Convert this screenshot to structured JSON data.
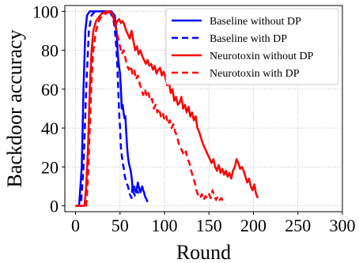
{
  "chart_data": {
    "type": "line",
    "title": "",
    "xlabel": "Round",
    "ylabel": "Backdoor accuracy",
    "xlim": [
      -12,
      300
    ],
    "ylim": [
      -3,
      103
    ],
    "xticks": [
      0,
      50,
      100,
      150,
      200,
      250,
      300
    ],
    "yticks": [
      0,
      20,
      40,
      60,
      80,
      100
    ],
    "grid": true,
    "grid_style": "dotted",
    "legend_position": "top-right",
    "series": [
      {
        "name": "Baseline without DP",
        "color": "#0000ff",
        "line_style": "solid",
        "points": [
          [
            0,
            0
          ],
          [
            4,
            0
          ],
          [
            7,
            20
          ],
          [
            9,
            60
          ],
          [
            11,
            90
          ],
          [
            13,
            98
          ],
          [
            16,
            100
          ],
          [
            20,
            100
          ],
          [
            30,
            100
          ],
          [
            40,
            100
          ],
          [
            44,
            98
          ],
          [
            46,
            90
          ],
          [
            48,
            75
          ],
          [
            50,
            68
          ],
          [
            51,
            60
          ],
          [
            52,
            50
          ],
          [
            53,
            52
          ],
          [
            54,
            48
          ],
          [
            55,
            45
          ],
          [
            56,
            46
          ],
          [
            57,
            38
          ],
          [
            58,
            30
          ],
          [
            59,
            25
          ],
          [
            60,
            22
          ],
          [
            61,
            20
          ],
          [
            62,
            18
          ],
          [
            63,
            15
          ],
          [
            64,
            10
          ],
          [
            65,
            8
          ],
          [
            66,
            10
          ],
          [
            67,
            8
          ],
          [
            68,
            7
          ],
          [
            69,
            9
          ],
          [
            70,
            12
          ],
          [
            71,
            10
          ],
          [
            72,
            8
          ],
          [
            73,
            7
          ],
          [
            74,
            9
          ],
          [
            75,
            10
          ],
          [
            76,
            8
          ],
          [
            77,
            7
          ],
          [
            78,
            5
          ],
          [
            79,
            4
          ],
          [
            80,
            3
          ],
          [
            81,
            2
          ]
        ]
      },
      {
        "name": "Baseline with DP",
        "color": "#0000ff",
        "line_style": "dashed",
        "points": [
          [
            0,
            0
          ],
          [
            6,
            0
          ],
          [
            9,
            20
          ],
          [
            12,
            60
          ],
          [
            15,
            90
          ],
          [
            18,
            98
          ],
          [
            22,
            100
          ],
          [
            30,
            100
          ],
          [
            38,
            100
          ],
          [
            42,
            97
          ],
          [
            44,
            92
          ],
          [
            46,
            80
          ],
          [
            47,
            72
          ],
          [
            48,
            60
          ],
          [
            49,
            48
          ],
          [
            50,
            40
          ],
          [
            51,
            30
          ],
          [
            52,
            26
          ],
          [
            53,
            22
          ],
          [
            54,
            20
          ],
          [
            55,
            16
          ],
          [
            56,
            14
          ],
          [
            57,
            13
          ],
          [
            58,
            11
          ],
          [
            59,
            10
          ],
          [
            60,
            8
          ],
          [
            61,
            6
          ],
          [
            62,
            5
          ],
          [
            63,
            4
          ],
          [
            64,
            10
          ],
          [
            65,
            7
          ],
          [
            66,
            6
          ],
          [
            67,
            5
          ],
          [
            68,
            5
          ],
          [
            69,
            8
          ],
          [
            70,
            7
          ],
          [
            71,
            6
          ],
          [
            72,
            7
          ]
        ]
      },
      {
        "name": "Neurotoxin without DP",
        "color": "#ff0000",
        "line_style": "solid",
        "points": [
          [
            0,
            0
          ],
          [
            10,
            0
          ],
          [
            12,
            10
          ],
          [
            14,
            30
          ],
          [
            16,
            60
          ],
          [
            18,
            80
          ],
          [
            20,
            90
          ],
          [
            23,
            95
          ],
          [
            26,
            97
          ],
          [
            30,
            99
          ],
          [
            35,
            100
          ],
          [
            38,
            100
          ],
          [
            41,
            99
          ],
          [
            43,
            96
          ],
          [
            45,
            93
          ],
          [
            47,
            95
          ],
          [
            49,
            96
          ],
          [
            51,
            94
          ],
          [
            53,
            95
          ],
          [
            55,
            93
          ],
          [
            57,
            90
          ],
          [
            59,
            88
          ],
          [
            61,
            86
          ],
          [
            63,
            90
          ],
          [
            65,
            85
          ],
          [
            67,
            80
          ],
          [
            69,
            82
          ],
          [
            71,
            78
          ],
          [
            73,
            80
          ],
          [
            75,
            77
          ],
          [
            77,
            75
          ],
          [
            79,
            73
          ],
          [
            81,
            75
          ],
          [
            83,
            72
          ],
          [
            85,
            73
          ],
          [
            87,
            70
          ],
          [
            89,
            72
          ],
          [
            91,
            68
          ],
          [
            93,
            70
          ],
          [
            95,
            71
          ],
          [
            97,
            67
          ],
          [
            99,
            69
          ],
          [
            101,
            66
          ],
          [
            103,
            62
          ],
          [
            105,
            64
          ],
          [
            107,
            58
          ],
          [
            109,
            60
          ],
          [
            111,
            54
          ],
          [
            113,
            56
          ],
          [
            115,
            52
          ],
          [
            117,
            53
          ],
          [
            119,
            56
          ],
          [
            121,
            50
          ],
          [
            123,
            52
          ],
          [
            125,
            48
          ],
          [
            127,
            51
          ],
          [
            129,
            46
          ],
          [
            131,
            48
          ],
          [
            133,
            44
          ],
          [
            135,
            46
          ],
          [
            137,
            40
          ],
          [
            139,
            38
          ],
          [
            141,
            35
          ],
          [
            143,
            32
          ],
          [
            145,
            30
          ],
          [
            147,
            28
          ],
          [
            149,
            26
          ],
          [
            151,
            24
          ],
          [
            153,
            22
          ],
          [
            155,
            24
          ],
          [
            157,
            20
          ],
          [
            159,
            18
          ],
          [
            161,
            21
          ],
          [
            163,
            17
          ],
          [
            165,
            19
          ],
          [
            167,
            16
          ],
          [
            169,
            18
          ],
          [
            171,
            15
          ],
          [
            173,
            17
          ],
          [
            175,
            14
          ],
          [
            177,
            18
          ],
          [
            179,
            20
          ],
          [
            181,
            24
          ],
          [
            183,
            22
          ],
          [
            185,
            19
          ],
          [
            187,
            20
          ],
          [
            189,
            18
          ],
          [
            191,
            15
          ],
          [
            193,
            12
          ],
          [
            195,
            14
          ],
          [
            197,
            10
          ],
          [
            199,
            8
          ],
          [
            201,
            11
          ],
          [
            203,
            6
          ],
          [
            205,
            4
          ]
        ]
      },
      {
        "name": "Neurotoxin with DP",
        "color": "#ff0000",
        "line_style": "dashed",
        "points": [
          [
            0,
            0
          ],
          [
            12,
            0
          ],
          [
            14,
            15
          ],
          [
            16,
            40
          ],
          [
            18,
            65
          ],
          [
            20,
            80
          ],
          [
            23,
            90
          ],
          [
            26,
            95
          ],
          [
            30,
            98
          ],
          [
            35,
            99
          ],
          [
            39,
            100
          ],
          [
            42,
            98
          ],
          [
            44,
            94
          ],
          [
            46,
            90
          ],
          [
            48,
            86
          ],
          [
            50,
            82
          ],
          [
            52,
            78
          ],
          [
            54,
            80
          ],
          [
            56,
            76
          ],
          [
            58,
            72
          ],
          [
            60,
            70
          ],
          [
            62,
            72
          ],
          [
            64,
            68
          ],
          [
            66,
            70
          ],
          [
            68,
            65
          ],
          [
            70,
            67
          ],
          [
            72,
            63
          ],
          [
            74,
            60
          ],
          [
            76,
            57
          ],
          [
            78,
            60
          ],
          [
            80,
            56
          ],
          [
            82,
            58
          ],
          [
            84,
            54
          ],
          [
            86,
            55
          ],
          [
            88,
            50
          ],
          [
            90,
            52
          ],
          [
            92,
            48
          ],
          [
            94,
            50
          ],
          [
            96,
            46
          ],
          [
            98,
            48
          ],
          [
            100,
            44
          ],
          [
            102,
            46
          ],
          [
            104,
            42
          ],
          [
            106,
            44
          ],
          [
            108,
            40
          ],
          [
            110,
            42
          ],
          [
            112,
            38
          ],
          [
            114,
            36
          ],
          [
            116,
            32
          ],
          [
            118,
            30
          ],
          [
            120,
            28
          ],
          [
            122,
            26
          ],
          [
            124,
            28
          ],
          [
            126,
            24
          ],
          [
            128,
            22
          ],
          [
            130,
            18
          ],
          [
            132,
            15
          ],
          [
            134,
            12
          ],
          [
            136,
            8
          ],
          [
            138,
            5
          ],
          [
            140,
            4
          ],
          [
            142,
            6
          ],
          [
            144,
            3
          ],
          [
            146,
            5
          ],
          [
            148,
            4
          ],
          [
            150,
            6
          ],
          [
            152,
            4
          ],
          [
            154,
            8
          ],
          [
            156,
            5
          ],
          [
            158,
            3
          ],
          [
            160,
            5
          ],
          [
            162,
            3
          ],
          [
            164,
            4
          ],
          [
            166,
            2
          ],
          [
            168,
            1
          ]
        ]
      }
    ]
  }
}
